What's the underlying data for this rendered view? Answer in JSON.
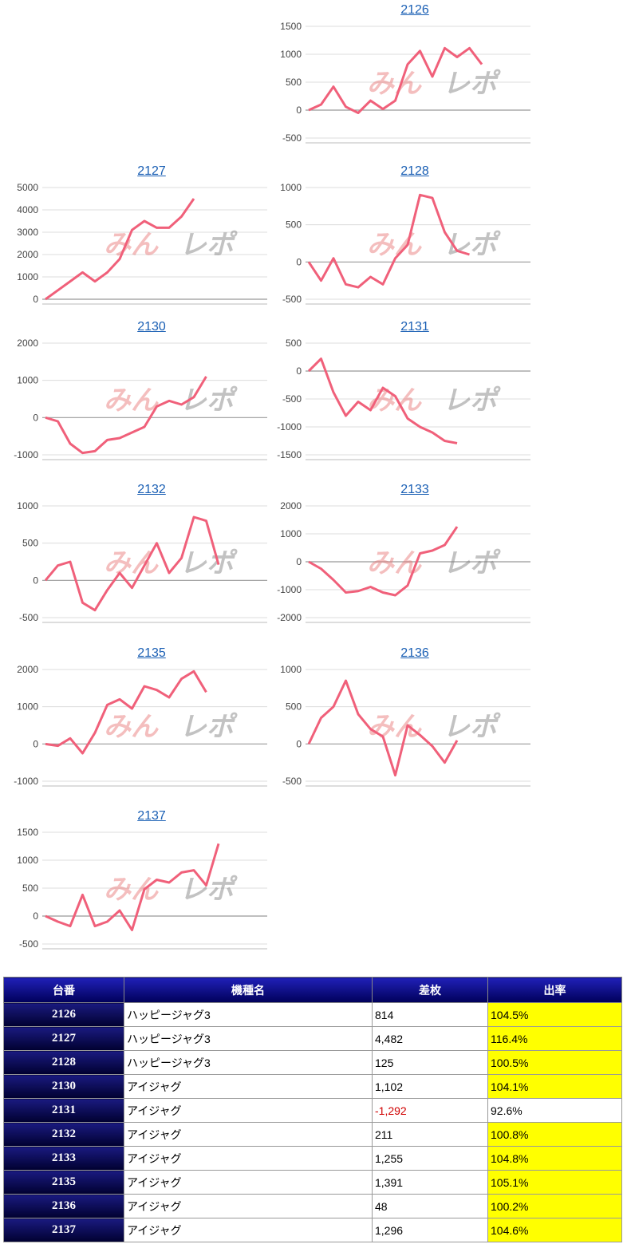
{
  "colors": {
    "line": "#f0607a",
    "link": "#1a5fb4",
    "highlight": "#ffff00",
    "negative": "#d00000",
    "grid": "#d0d0d0",
    "axis": "#999999"
  },
  "watermark": {
    "left": "みん",
    "right": "レポ"
  },
  "chart_data": [
    {
      "type": "line",
      "title": "2126",
      "ylim": [
        -500,
        1500
      ],
      "yticks": [
        1500,
        1000,
        500,
        0,
        -500
      ],
      "y": [
        0,
        100,
        420,
        60,
        -50,
        170,
        20,
        170,
        820,
        1060,
        600,
        1110,
        950,
        1110,
        820
      ]
    },
    {
      "type": "line",
      "title": "2127",
      "ylim": [
        0,
        5000
      ],
      "yticks": [
        5000,
        4000,
        3000,
        2000,
        1000,
        0
      ],
      "y": [
        0,
        400,
        800,
        1200,
        800,
        1200,
        1800,
        3100,
        3500,
        3200,
        3200,
        3700,
        4500
      ]
    },
    {
      "type": "line",
      "title": "2128",
      "ylim": [
        -500,
        1000
      ],
      "yticks": [
        1000,
        500,
        0,
        -500
      ],
      "y": [
        0,
        -250,
        50,
        -300,
        -340,
        -200,
        -300,
        50,
        230,
        900,
        860,
        400,
        150,
        100
      ]
    },
    {
      "type": "line",
      "title": "2130",
      "ylim": [
        -1000,
        2000
      ],
      "yticks": [
        2000,
        1000,
        0,
        -1000
      ],
      "y": [
        0,
        -100,
        -700,
        -950,
        -900,
        -600,
        -550,
        -400,
        -250,
        300,
        450,
        350,
        550,
        1102
      ]
    },
    {
      "type": "line",
      "title": "2131",
      "ylim": [
        -1500,
        500
      ],
      "yticks": [
        500,
        0,
        -500,
        -1000,
        -1500
      ],
      "y": [
        0,
        220,
        -380,
        -800,
        -550,
        -700,
        -300,
        -450,
        -850,
        -1000,
        -1100,
        -1250,
        -1292
      ]
    },
    {
      "type": "line",
      "title": "2132",
      "ylim": [
        -500,
        1000
      ],
      "yticks": [
        1000,
        500,
        0,
        -500
      ],
      "y": [
        0,
        200,
        250,
        -300,
        -400,
        -130,
        100,
        -100,
        200,
        500,
        100,
        300,
        850,
        800,
        211
      ]
    },
    {
      "type": "line",
      "title": "2133",
      "ylim": [
        -2000,
        2000
      ],
      "yticks": [
        2000,
        1000,
        0,
        -1000,
        -2000
      ],
      "y": [
        0,
        -250,
        -650,
        -1100,
        -1050,
        -900,
        -1100,
        -1200,
        -850,
        300,
        400,
        600,
        1255
      ]
    },
    {
      "type": "line",
      "title": "2135",
      "ylim": [
        -1000,
        2000
      ],
      "yticks": [
        2000,
        1000,
        0,
        -1000
      ],
      "y": [
        0,
        -50,
        150,
        -250,
        300,
        1050,
        1200,
        950,
        1550,
        1450,
        1250,
        1750,
        1950,
        1391
      ]
    },
    {
      "type": "line",
      "title": "2136",
      "ylim": [
        -500,
        1000
      ],
      "yticks": [
        1000,
        500,
        0,
        -500
      ],
      "y": [
        0,
        350,
        500,
        850,
        400,
        200,
        100,
        -420,
        250,
        120,
        -30,
        -250,
        48
      ]
    },
    {
      "type": "line",
      "title": "2137",
      "ylim": [
        -500,
        1500
      ],
      "yticks": [
        1500,
        1000,
        500,
        0,
        -500
      ],
      "y": [
        0,
        -100,
        -180,
        380,
        -180,
        -100,
        100,
        -250,
        480,
        650,
        600,
        780,
        820,
        550,
        1296
      ]
    }
  ],
  "table": {
    "headers": [
      "台番",
      "機種名",
      "差枚",
      "出率"
    ],
    "rows": [
      {
        "num": "2126",
        "model": "ハッピージャグ3",
        "diff": "814",
        "rate": "104.5%",
        "hi": true,
        "neg": false
      },
      {
        "num": "2127",
        "model": "ハッピージャグ3",
        "diff": "4,482",
        "rate": "116.4%",
        "hi": true,
        "neg": false
      },
      {
        "num": "2128",
        "model": "ハッピージャグ3",
        "diff": "125",
        "rate": "100.5%",
        "hi": true,
        "neg": false
      },
      {
        "num": "2130",
        "model": "アイジャグ",
        "diff": "1,102",
        "rate": "104.1%",
        "hi": true,
        "neg": false
      },
      {
        "num": "2131",
        "model": "アイジャグ",
        "diff": "-1,292",
        "rate": "92.6%",
        "hi": false,
        "neg": true
      },
      {
        "num": "2132",
        "model": "アイジャグ",
        "diff": "211",
        "rate": "100.8%",
        "hi": true,
        "neg": false
      },
      {
        "num": "2133",
        "model": "アイジャグ",
        "diff": "1,255",
        "rate": "104.8%",
        "hi": true,
        "neg": false
      },
      {
        "num": "2135",
        "model": "アイジャグ",
        "diff": "1,391",
        "rate": "105.1%",
        "hi": true,
        "neg": false
      },
      {
        "num": "2136",
        "model": "アイジャグ",
        "diff": "48",
        "rate": "100.2%",
        "hi": true,
        "neg": false
      },
      {
        "num": "2137",
        "model": "アイジャグ",
        "diff": "1,296",
        "rate": "104.6%",
        "hi": true,
        "neg": false
      }
    ]
  }
}
